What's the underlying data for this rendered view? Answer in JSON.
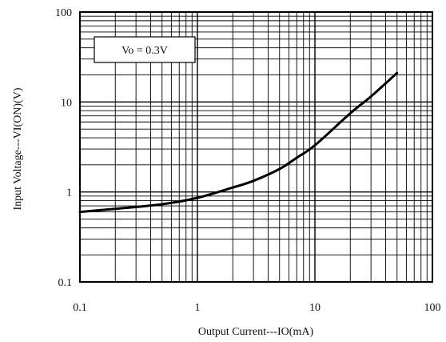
{
  "chart_data": {
    "type": "line",
    "title": "",
    "xlabel": "Output Current---IO(mA)",
    "ylabel": "Input Voltage---VI(ON)(V)",
    "x_scale": "log",
    "y_scale": "log",
    "xlim": [
      0.1,
      100
    ],
    "ylim": [
      0.1,
      100
    ],
    "x_tick_labels": [
      "0.1",
      "1",
      "10",
      "100"
    ],
    "y_tick_labels": [
      "0.1",
      "1",
      "10",
      "100"
    ],
    "grid": true,
    "legend_position": "top-left",
    "annotation": "Vo = 0.3V",
    "series": [
      {
        "x": [
          0.1,
          0.2,
          0.5,
          1,
          2,
          3,
          5,
          7,
          10,
          20,
          30,
          50
        ],
        "y": [
          0.6,
          0.65,
          0.73,
          0.86,
          1.12,
          1.33,
          1.8,
          2.4,
          3.3,
          7.5,
          11.5,
          21
        ]
      }
    ],
    "colors": {
      "line": "#000000",
      "grid": "#000000",
      "background": "#ffffff"
    }
  }
}
